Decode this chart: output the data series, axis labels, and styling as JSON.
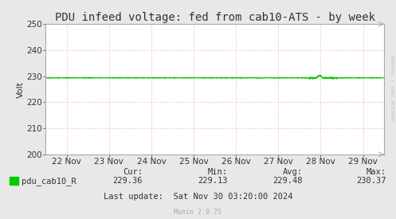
{
  "title": "PDU infeed voltage: fed from cab10-ATS - by week",
  "ylabel": "Volt",
  "bg_color": "#e8e8e8",
  "plot_bg_color": "#ffffff",
  "grid_color": "#ff9999",
  "line_color": "#00cc00",
  "border_color": "#aaaaaa",
  "arrow_color": "#aaaacc",
  "text_color": "#333333",
  "watermark_color": "#aaaaaa",
  "rrdtool_color": "#bbbbcc",
  "ylim": [
    200,
    250
  ],
  "yticks": [
    200,
    210,
    220,
    230,
    240,
    250
  ],
  "xlim": [
    0,
    8
  ],
  "xtick_labels": [
    "22 Nov",
    "23 Nov",
    "24 Nov",
    "25 Nov",
    "26 Nov",
    "27 Nov",
    "28 Nov",
    "29 Nov"
  ],
  "xtick_positions": [
    0.5,
    1.5,
    2.5,
    3.5,
    4.5,
    5.5,
    6.5,
    7.5
  ],
  "base_value": 229.35,
  "legend_label": "pdu_cab10_R",
  "legend_color": "#00cc00",
  "cur_label": "Cur:",
  "cur_value": "229.36",
  "min_label": "Min:",
  "min_value": "229.13",
  "avg_label": "Avg:",
  "avg_value": "229.48",
  "max_label": "Max:",
  "max_value": "230.37",
  "last_update": "Last update:  Sat Nov 30 03:20:00 2024",
  "watermark": "Munin 2.0.75",
  "rrdtool_text": "RRDTOOL / TOBI OETIKER",
  "title_fontsize": 10,
  "axis_fontsize": 7.5,
  "legend_fontsize": 7.5,
  "stats_fontsize": 7.5,
  "watermark_fontsize": 6
}
